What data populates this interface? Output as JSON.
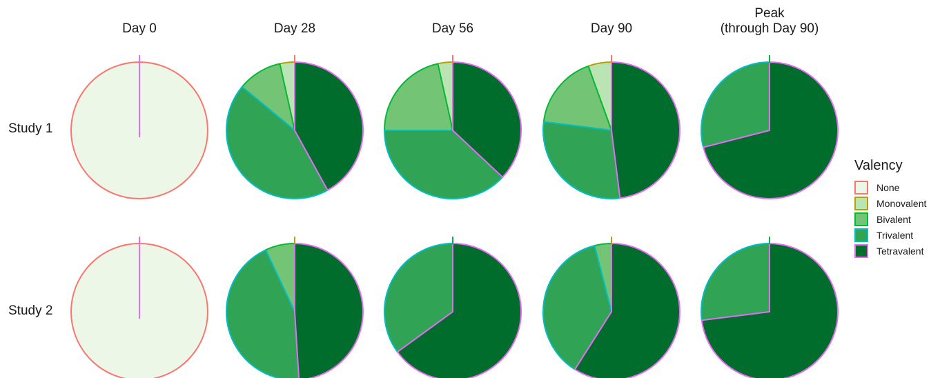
{
  "chart_data": {
    "type": "pie",
    "columns": [
      "Day 0",
      "Day 28",
      "Day 56",
      "Day 90",
      "Peak\n(through Day 90)"
    ],
    "rows": [
      "Study 1",
      "Study 2"
    ],
    "legend": {
      "title": "Valency",
      "position": "right",
      "items": [
        {
          "label": "None",
          "fill": "#EDF7E7",
          "outline": "#F8766D"
        },
        {
          "label": "Monovalent",
          "fill": "#BBE4B5",
          "outline": "#B79F00"
        },
        {
          "label": "Bivalent",
          "fill": "#74C476",
          "outline": "#00BA38"
        },
        {
          "label": "Trivalent",
          "fill": "#31A354",
          "outline": "#00BFC4"
        },
        {
          "label": "Tetravalent",
          "fill": "#006D2C",
          "outline": "#E76BF3"
        }
      ]
    },
    "panels": [
      {
        "row": "Study 1",
        "column": "Day 0",
        "values": {
          "None": 100,
          "Monovalent": 0,
          "Bivalent": 0,
          "Trivalent": 0,
          "Tetravalent": 0
        }
      },
      {
        "row": "Study 1",
        "column": "Day 28",
        "values": {
          "None": 0,
          "Monovalent": 3.5,
          "Bivalent": 10.5,
          "Trivalent": 44,
          "Tetravalent": 42
        }
      },
      {
        "row": "Study 1",
        "column": "Day 56",
        "values": {
          "None": 0,
          "Monovalent": 3.5,
          "Bivalent": 21.5,
          "Trivalent": 38,
          "Tetravalent": 37
        }
      },
      {
        "row": "Study 1",
        "column": "Day 90",
        "values": {
          "None": 0,
          "Monovalent": 5.5,
          "Bivalent": 17.5,
          "Trivalent": 29,
          "Tetravalent": 48
        }
      },
      {
        "row": "Study 1",
        "column": "Peak\n(through Day 90)",
        "values": {
          "None": 0,
          "Monovalent": 0,
          "Bivalent": 0,
          "Trivalent": 29,
          "Tetravalent": 71
        }
      },
      {
        "row": "Study 2",
        "column": "Day 0",
        "values": {
          "None": 100,
          "Monovalent": 0,
          "Bivalent": 0,
          "Trivalent": 0,
          "Tetravalent": 0
        }
      },
      {
        "row": "Study 2",
        "column": "Day 28",
        "values": {
          "None": 0,
          "Monovalent": 0,
          "Bivalent": 7,
          "Trivalent": 44,
          "Tetravalent": 49
        }
      },
      {
        "row": "Study 2",
        "column": "Day 56",
        "values": {
          "None": 0,
          "Monovalent": 0,
          "Bivalent": 0,
          "Trivalent": 35,
          "Tetravalent": 65
        }
      },
      {
        "row": "Study 2",
        "column": "Day 90",
        "values": {
          "None": 0,
          "Monovalent": 0,
          "Bivalent": 4,
          "Trivalent": 37,
          "Tetravalent": 59
        }
      },
      {
        "row": "Study 2",
        "column": "Peak\n(through Day 90)",
        "values": {
          "None": 0,
          "Monovalent": 0,
          "Bivalent": 0,
          "Trivalent": 27,
          "Tetravalent": 73
        }
      }
    ]
  }
}
